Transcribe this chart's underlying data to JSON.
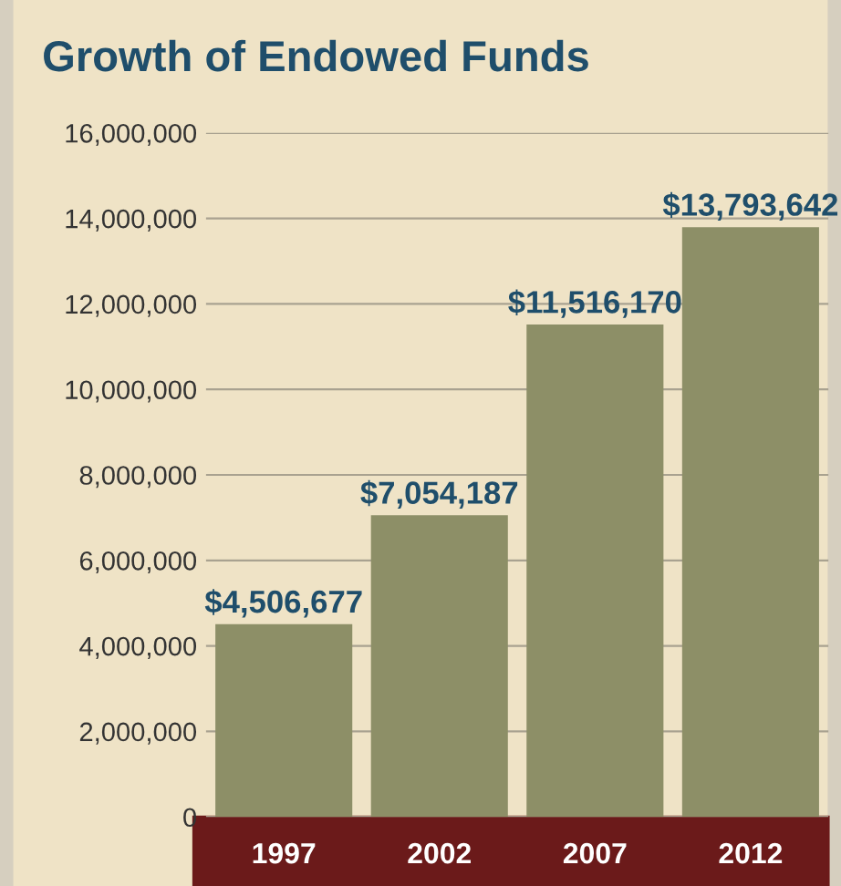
{
  "chart_data": {
    "type": "bar",
    "title": "Growth of Endowed Funds",
    "categories": [
      "1997",
      "2002",
      "2007",
      "2012"
    ],
    "values": [
      4506677,
      7054187,
      11516170,
      13793642
    ],
    "color": "#8d8f67",
    "value_labels": [
      "$4,506,677",
      "$7,054,187",
      "$11,516,170",
      "$13,793,642"
    ],
    "ylim": [
      0,
      16000000
    ],
    "yticks": [
      {
        "value": 0,
        "label": "0"
      },
      {
        "value": 2000000,
        "label": "2,000,000"
      },
      {
        "value": 4000000,
        "label": "4,000,000"
      },
      {
        "value": 6000000,
        "label": "6,000,000"
      },
      {
        "value": 8000000,
        "label": "8,000,000"
      },
      {
        "value": 10000000,
        "label": "10,000,000"
      },
      {
        "value": 12000000,
        "label": "12,000,000"
      },
      {
        "value": 14000000,
        "label": "14,000,000"
      },
      {
        "value": 16000000,
        "label": "16,000,000"
      }
    ],
    "grid": "y"
  }
}
